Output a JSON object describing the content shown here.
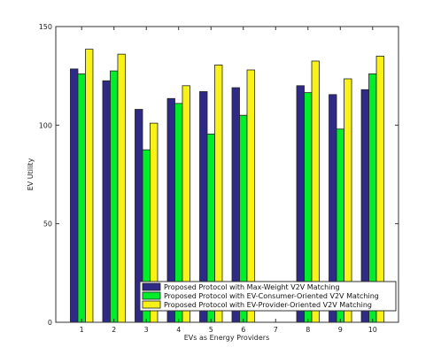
{
  "chart_data": {
    "type": "bar",
    "title": "",
    "xlabel": "EVs as Energy Providers",
    "ylabel": "EV Utility",
    "categories": [
      "1",
      "2",
      "3",
      "4",
      "5",
      "6",
      "7",
      "8",
      "9",
      "10"
    ],
    "ylim": [
      0,
      150
    ],
    "yticks": [
      "0",
      "50",
      "100",
      "150"
    ],
    "grid": false,
    "legend_position": "bottom-right",
    "series": [
      {
        "name": "Proposed Protocol with Max-Weight V2V Matching",
        "color": "#2e2a85",
        "values": [
          128.5,
          122.5,
          108,
          113.5,
          117,
          119,
          0,
          120,
          115.5,
          118
        ]
      },
      {
        "name": "Proposed Protocol with EV-Consumer-Oriented V2V Matching",
        "color": "#00ee2a",
        "values": [
          126,
          127.5,
          87.5,
          111,
          95.5,
          105,
          0,
          116.5,
          98,
          126
        ]
      },
      {
        "name": "Proposed Protocol with EV-Provider-Oriented V2V Matching",
        "color": "#f8f218",
        "values": [
          138.5,
          136,
          101,
          120,
          130.5,
          128,
          0,
          132.5,
          123.5,
          135
        ]
      }
    ]
  }
}
